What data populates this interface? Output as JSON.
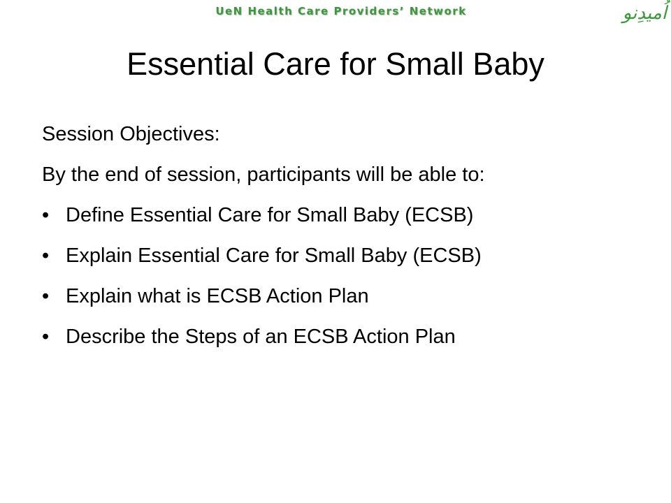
{
  "header": {
    "network_name": "UeN Health Care Providers’ Network",
    "logo_text": "اُمیدِنو"
  },
  "slide": {
    "title": "Essential Care for Small Baby",
    "objectives_heading": "Session Objectives:",
    "intro": "By the end of session, participants will be able to:",
    "bullet_glyph": "•",
    "bullets": [
      "Define Essential Care for Small Baby (ECSB)",
      "Explain Essential Care for Small Baby (ECSB)",
      "Explain what is ECSB Action Plan",
      "Describe the Steps of an ECSB Action Plan"
    ]
  },
  "colors": {
    "accent_green": "#3a9a3a",
    "text": "#000000",
    "background": "#ffffff"
  }
}
